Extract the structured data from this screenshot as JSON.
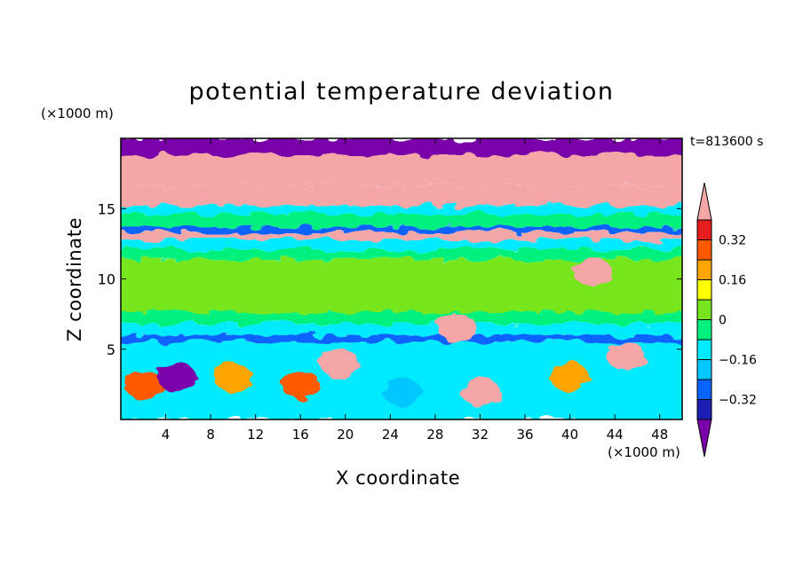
{
  "chart_data": {
    "type": "heatmap",
    "title": "potential temperature deviation",
    "xlabel": "X coordinate",
    "ylabel": "Z coordinate",
    "x_unit": "(×1000 m)",
    "y_unit": "(×1000 m)",
    "time_label": "t=813600 s",
    "xlim": [
      0,
      50
    ],
    "ylim": [
      0,
      20
    ],
    "x_ticks": [
      4,
      8,
      12,
      16,
      20,
      24,
      28,
      32,
      36,
      40,
      44,
      48
    ],
    "y_ticks": [
      5,
      10,
      15
    ],
    "colorbar": {
      "levels": [
        -0.4,
        -0.32,
        -0.24,
        -0.16,
        -0.08,
        0,
        0.08,
        0.16,
        0.24,
        0.32,
        0.4
      ],
      "colors": [
        "#7a00aa",
        "#1e1eb4",
        "#0a64ff",
        "#00c8ff",
        "#00ebff",
        "#00f07d",
        "#78e61e",
        "#ffff00",
        "#ffa500",
        "#ff5a00",
        "#e61e1e",
        "#f5a7a7"
      ],
      "tick_labels": [
        "0.32",
        "0.16",
        "0",
        "-0.16",
        "-0.32"
      ],
      "tick_values": [
        0.32,
        0.16,
        0,
        -0.16,
        -0.32
      ],
      "extend": "both"
    },
    "field_bands": [
      {
        "z": [
          18.8,
          20
        ],
        "value": -0.45
      },
      {
        "z": [
          16.6,
          18.8
        ],
        "value": 0.45
      },
      {
        "z": [
          15.2,
          16.6
        ],
        "value": 0.45
      },
      {
        "z": [
          14.6,
          15.2
        ],
        "value": -0.12
      },
      {
        "z": [
          13.7,
          14.6
        ],
        "value": -0.05
      },
      {
        "z": [
          13.3,
          13.7
        ],
        "value": -0.3
      },
      {
        "z": [
          12.8,
          13.3
        ],
        "value": 0.45
      },
      {
        "z": [
          12.1,
          12.8
        ],
        "value": -0.1
      },
      {
        "z": [
          11.4,
          12.1
        ],
        "value": -0.02
      },
      {
        "z": [
          7.6,
          11.4
        ],
        "value": 0.02
      },
      {
        "z": [
          6.8,
          7.6
        ],
        "value": -0.05
      },
      {
        "z": [
          6.0,
          6.8
        ],
        "value": -0.12
      },
      {
        "z": [
          5.5,
          6.0
        ],
        "value": -0.3
      },
      {
        "z": [
          0,
          5.5
        ],
        "value": -0.1
      }
    ],
    "features": [
      {
        "x": 2,
        "z": 2.5,
        "value": 0.3
      },
      {
        "x": 5,
        "z": 3.0,
        "value": -0.45
      },
      {
        "x": 10,
        "z": 3.0,
        "value": 0.2
      },
      {
        "x": 16,
        "z": 2.5,
        "value": 0.25
      },
      {
        "x": 19.5,
        "z": 4.0,
        "value": 0.45
      },
      {
        "x": 25,
        "z": 2.0,
        "value": -0.2
      },
      {
        "x": 32,
        "z": 2.0,
        "value": 0.4
      },
      {
        "x": 40,
        "z": 3.0,
        "value": 0.2
      },
      {
        "x": 45,
        "z": 4.5,
        "value": 0.45
      },
      {
        "x": 30,
        "z": 6.5,
        "value": 0.45
      },
      {
        "x": 42,
        "z": 10.5,
        "value": 0.45
      },
      {
        "x": 20,
        "z": 17.5,
        "value": 0.45
      }
    ]
  }
}
